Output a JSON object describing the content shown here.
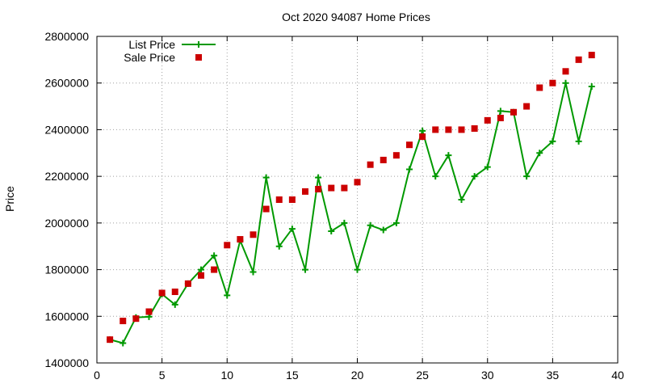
{
  "chart_data": {
    "type": "line",
    "title": "Oct 2020 94087 Home Prices",
    "xlabel": "",
    "ylabel": "Price",
    "xlim": [
      0,
      40
    ],
    "ylim": [
      1400000,
      2800000
    ],
    "xticks": [
      "0",
      "5",
      "10",
      "15",
      "20",
      "25",
      "30",
      "35",
      "40"
    ],
    "yticks": [
      "1400000",
      "1600000",
      "1800000",
      "2000000",
      "2200000",
      "2400000",
      "2600000",
      "2800000"
    ],
    "grid": true,
    "legend_position": "top-left",
    "series": [
      {
        "name": "List Price",
        "style": "line-plus",
        "color": "#009900",
        "x": [
          1,
          2,
          3,
          4,
          5,
          6,
          7,
          8,
          9,
          10,
          11,
          12,
          13,
          14,
          15,
          16,
          17,
          18,
          19,
          20,
          21,
          22,
          23,
          24,
          25,
          26,
          27,
          28,
          29,
          30,
          31,
          32,
          33,
          34,
          35,
          36,
          37,
          38
        ],
        "values": [
          1500000,
          1485000,
          1595000,
          1598000,
          1695000,
          1650000,
          1740000,
          1800000,
          1860000,
          1690000,
          1925000,
          1790000,
          2195000,
          1900000,
          1975000,
          1800000,
          2195000,
          1965000,
          2000000,
          1800000,
          1990000,
          1970000,
          2000000,
          2230000,
          2395000,
          2200000,
          2290000,
          2100000,
          2200000,
          2240000,
          2480000,
          2475000,
          2200000,
          2300000,
          2350000,
          2600000,
          2350000,
          2585000
        ]
      },
      {
        "name": "Sale Price",
        "style": "square-markers",
        "color": "#cc0000",
        "x": [
          1,
          2,
          3,
          4,
          5,
          6,
          7,
          8,
          9,
          10,
          11,
          12,
          13,
          14,
          15,
          16,
          17,
          18,
          19,
          20,
          21,
          22,
          23,
          24,
          25,
          26,
          27,
          28,
          29,
          30,
          31,
          32,
          33,
          34,
          35,
          36,
          37,
          38
        ],
        "values": [
          1500000,
          1580000,
          1590000,
          1620000,
          1700000,
          1705000,
          1740000,
          1775000,
          1800000,
          1905000,
          1930000,
          1950000,
          2060000,
          2100000,
          2100000,
          2135000,
          2145000,
          2150000,
          2150000,
          2175000,
          2250000,
          2270000,
          2290000,
          2335000,
          2370000,
          2400000,
          2400000,
          2400000,
          2405000,
          2440000,
          2450000,
          2475000,
          2500000,
          2580000,
          2600000,
          2650000,
          2700000,
          2720000
        ]
      }
    ]
  }
}
